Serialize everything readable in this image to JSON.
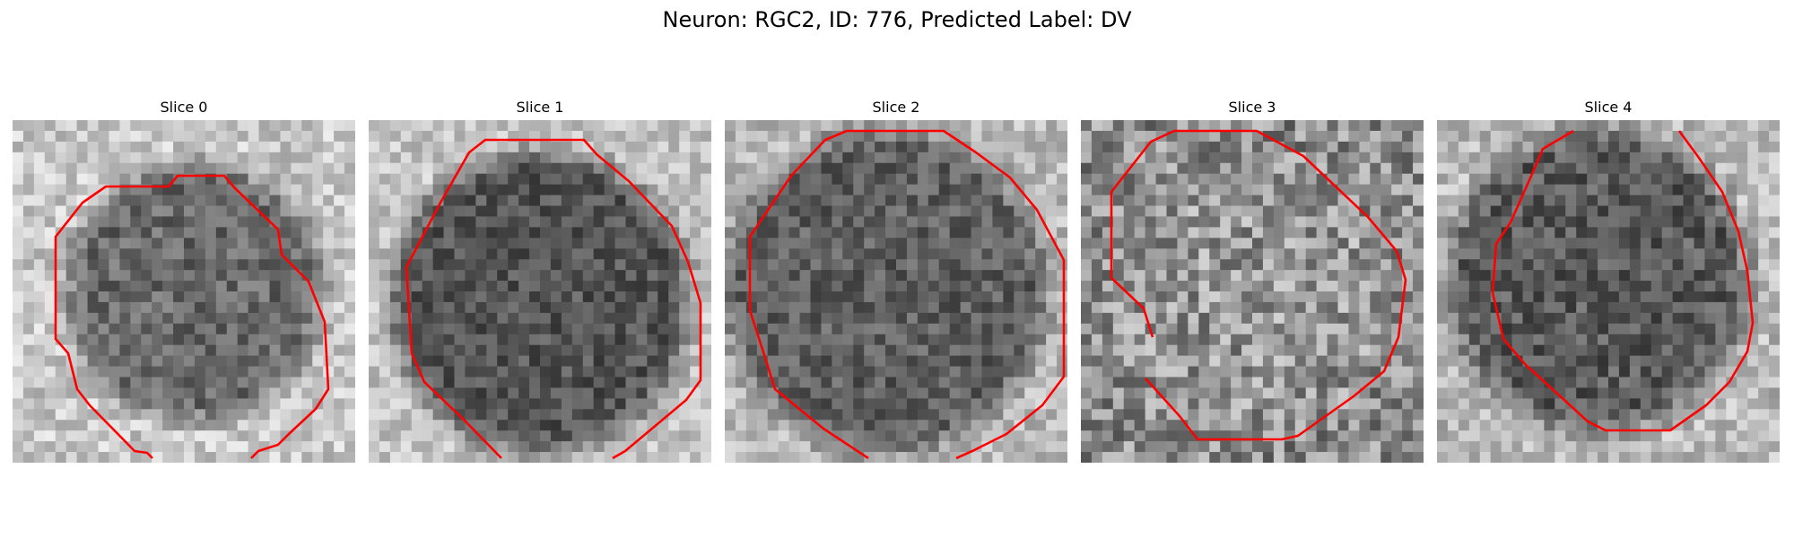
{
  "figure": {
    "title": "Neuron: RGC2, ID: 776, Predicted Label: DV",
    "contour_color": "#ff0000",
    "panels": [
      {
        "title": "Slice 0"
      },
      {
        "title": "Slice 1"
      },
      {
        "title": "Slice 2"
      },
      {
        "title": "Slice 3"
      },
      {
        "title": "Slice 4"
      }
    ]
  }
}
